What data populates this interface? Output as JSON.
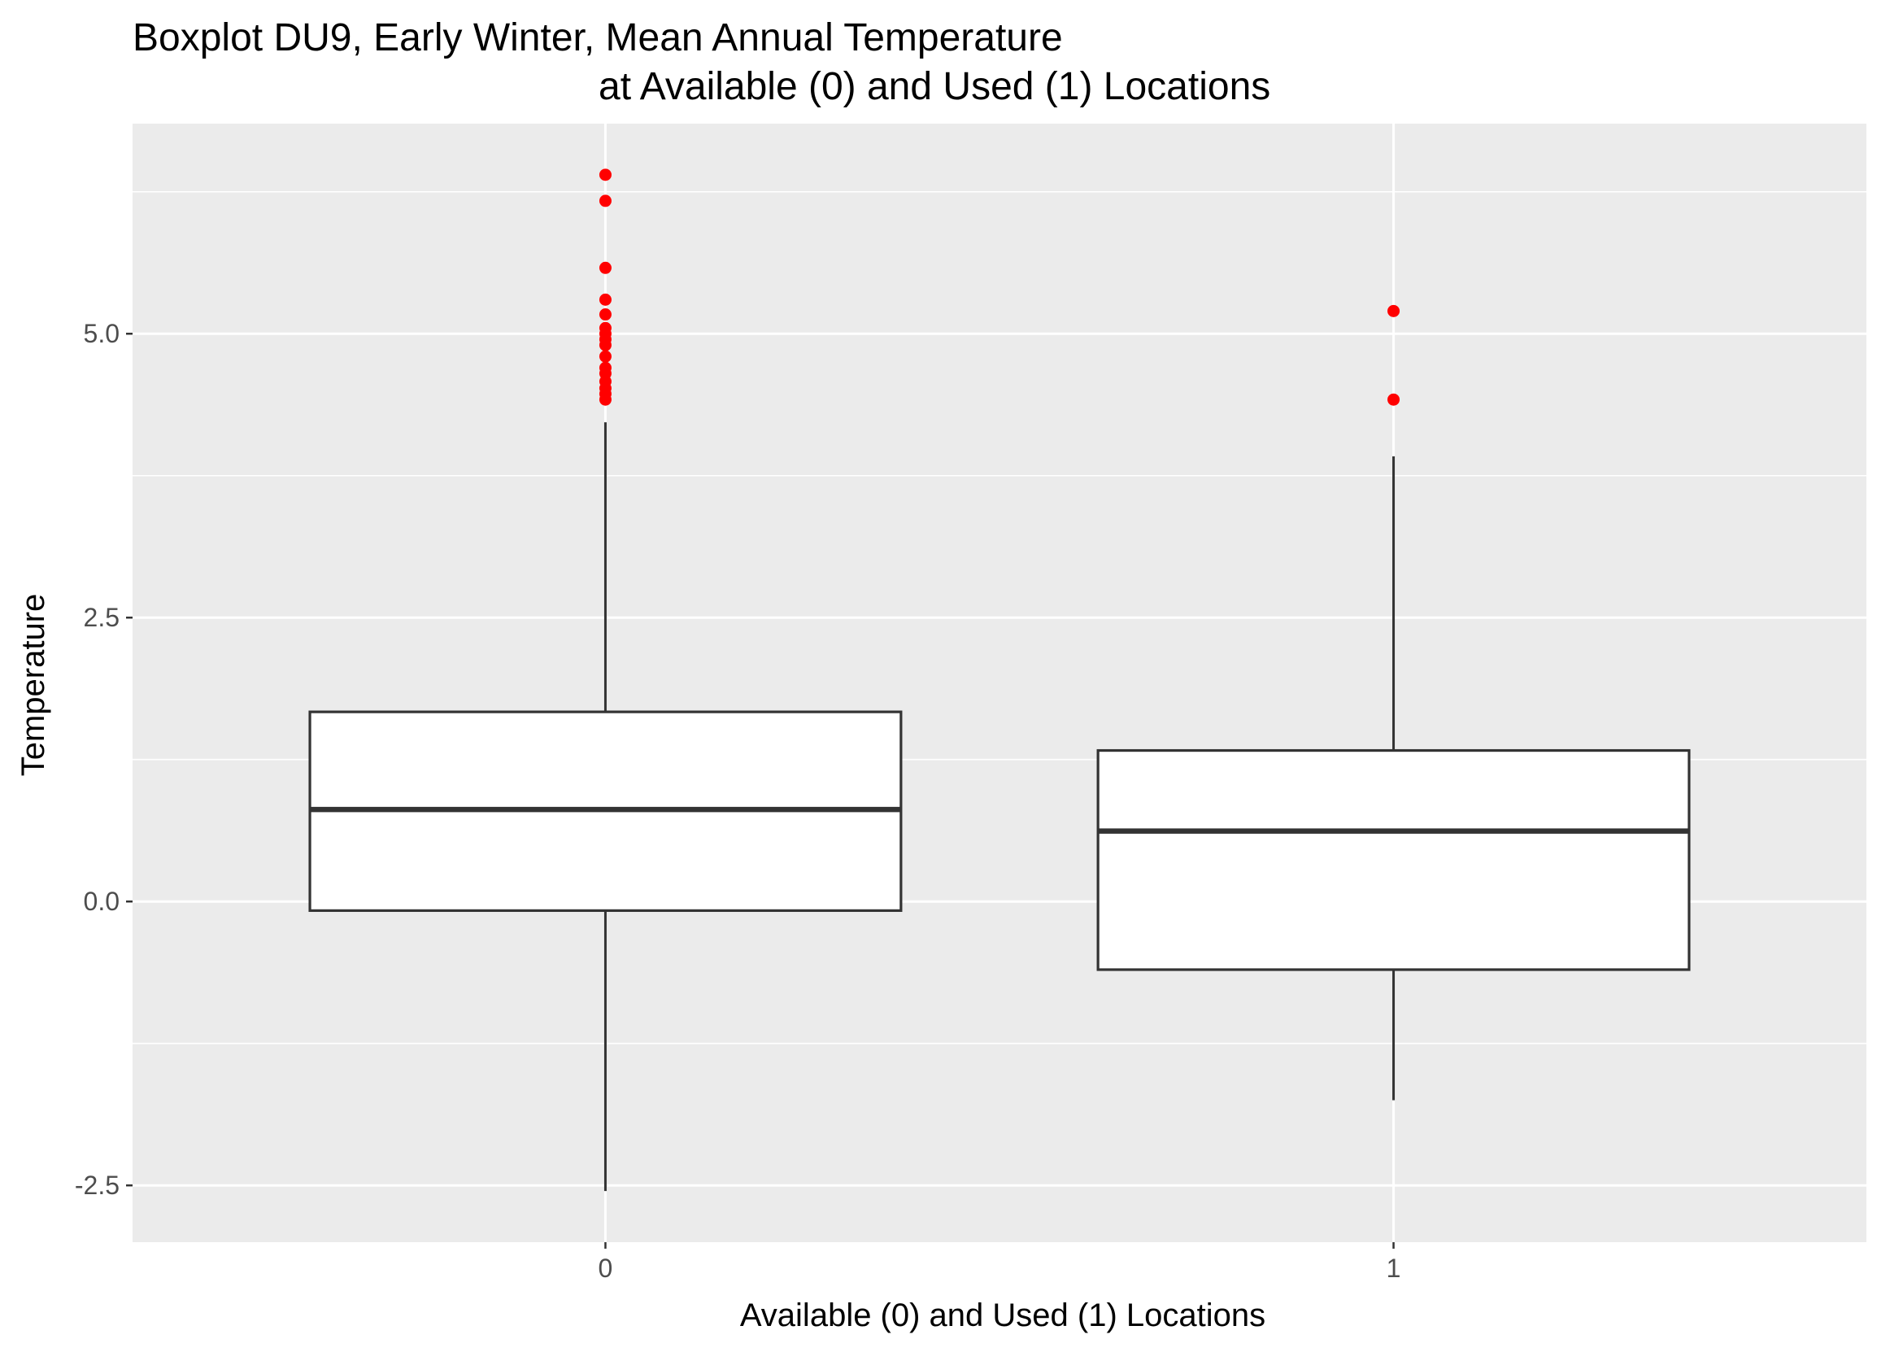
{
  "chart_data": {
    "type": "boxplot",
    "title": "Boxplot DU9, Early Winter, Mean Annual Temperature",
    "subtitle": "at Available (0) and Used (1) Locations",
    "xlabel": "Available (0) and Used (1) Locations",
    "ylabel": "Temperature",
    "categories": [
      "0",
      "1"
    ],
    "ylim": [
      -3.0,
      6.85
    ],
    "yticks": [
      -2.5,
      0.0,
      2.5,
      5.0
    ],
    "ytick_labels": [
      "-2.5",
      "0.0",
      "2.5",
      "5.0"
    ],
    "grid": true,
    "boxes": [
      {
        "category": "0",
        "whisker_low": -2.55,
        "q1": -0.08,
        "median": 0.81,
        "q3": 1.67,
        "whisker_high": 4.22,
        "outliers": [
          6.4,
          6.17,
          5.58,
          5.3,
          5.17,
          5.05,
          5.0,
          4.95,
          4.9,
          4.8,
          4.7,
          4.65,
          4.58,
          4.52,
          4.47,
          4.42
        ]
      },
      {
        "category": "1",
        "whisker_low": -1.75,
        "q1": -0.6,
        "median": 0.62,
        "q3": 1.33,
        "whisker_high": 3.92,
        "outliers": [
          5.2,
          4.42
        ]
      }
    ],
    "colors": {
      "panel": "#ebebeb",
      "grid": "#ffffff",
      "box_fill": "#ffffff",
      "box_stroke": "#333333",
      "outlier": "#ff0000"
    }
  }
}
